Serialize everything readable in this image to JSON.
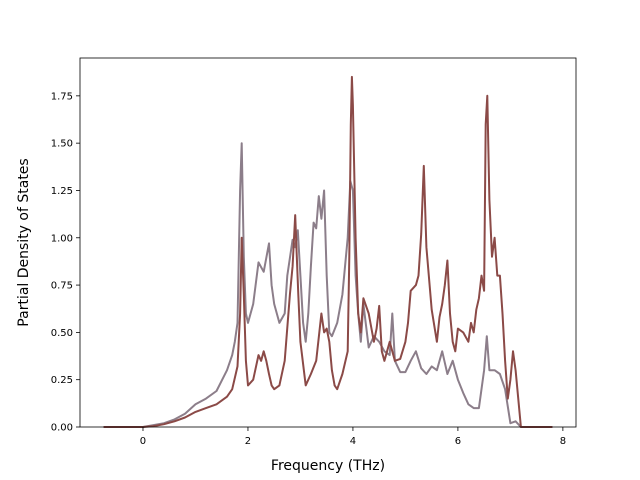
{
  "chart_data": {
    "type": "line",
    "title": "",
    "xlabel": "Frequency (THz)",
    "ylabel": "Partial Density of States",
    "xlim": [
      -1.2,
      8.25
    ],
    "ylim": [
      0,
      1.95
    ],
    "xticks": [
      0,
      2,
      4,
      6,
      8
    ],
    "yticks": [
      0.0,
      0.25,
      0.5,
      0.75,
      1.0,
      1.25,
      1.5,
      1.75
    ],
    "xtick_labels": [
      "0",
      "2",
      "4",
      "6",
      "8"
    ],
    "ytick_labels": [
      "0.00",
      "0.25",
      "0.50",
      "0.75",
      "1.00",
      "1.25",
      "1.50",
      "1.75"
    ],
    "grid": false,
    "legend": "none",
    "series": [
      {
        "color": "#8c7e8a",
        "x": [
          -0.75,
          0.0,
          0.2,
          0.4,
          0.6,
          0.8,
          1.0,
          1.2,
          1.4,
          1.6,
          1.7,
          1.75,
          1.8,
          1.85,
          1.88,
          1.92,
          1.96,
          2.0,
          2.1,
          2.2,
          2.3,
          2.4,
          2.45,
          2.5,
          2.6,
          2.7,
          2.75,
          2.85,
          2.9,
          2.95,
          3.0,
          3.05,
          3.1,
          3.15,
          3.2,
          3.25,
          3.3,
          3.35,
          3.4,
          3.45,
          3.5,
          3.55,
          3.6,
          3.7,
          3.8,
          3.9,
          3.95,
          4.0,
          4.05,
          4.1,
          4.15,
          4.2,
          4.3,
          4.4,
          4.5,
          4.6,
          4.7,
          4.75,
          4.8,
          4.9,
          5.0,
          5.1,
          5.2,
          5.3,
          5.4,
          5.5,
          5.6,
          5.7,
          5.8,
          5.9,
          6.0,
          6.1,
          6.2,
          6.3,
          6.4,
          6.5,
          6.55,
          6.6,
          6.7,
          6.8,
          6.9,
          7.0,
          7.1,
          7.2,
          7.8
        ],
        "y": [
          0.0,
          0.0,
          0.01,
          0.02,
          0.04,
          0.07,
          0.12,
          0.15,
          0.19,
          0.3,
          0.38,
          0.45,
          0.55,
          1.25,
          1.5,
          0.9,
          0.6,
          0.55,
          0.65,
          0.87,
          0.82,
          0.97,
          0.75,
          0.65,
          0.55,
          0.6,
          0.8,
          0.99,
          0.95,
          1.04,
          0.8,
          0.55,
          0.45,
          0.6,
          0.85,
          1.08,
          1.05,
          1.22,
          1.1,
          1.25,
          0.8,
          0.5,
          0.48,
          0.55,
          0.7,
          1.0,
          1.3,
          1.25,
          0.8,
          0.6,
          0.45,
          0.65,
          0.42,
          0.48,
          0.45,
          0.4,
          0.38,
          0.6,
          0.35,
          0.29,
          0.29,
          0.35,
          0.4,
          0.31,
          0.28,
          0.32,
          0.3,
          0.4,
          0.28,
          0.35,
          0.25,
          0.18,
          0.12,
          0.1,
          0.1,
          0.3,
          0.48,
          0.3,
          0.3,
          0.28,
          0.2,
          0.02,
          0.03,
          0.0,
          0.0
        ]
      },
      {
        "color": "#8b4a47",
        "x": [
          -0.75,
          0.0,
          0.2,
          0.4,
          0.6,
          0.8,
          1.0,
          1.2,
          1.4,
          1.6,
          1.7,
          1.8,
          1.85,
          1.88,
          1.92,
          1.96,
          2.0,
          2.1,
          2.2,
          2.25,
          2.3,
          2.35,
          2.4,
          2.45,
          2.5,
          2.6,
          2.7,
          2.8,
          2.85,
          2.9,
          2.93,
          2.96,
          3.0,
          3.1,
          3.2,
          3.3,
          3.4,
          3.45,
          3.5,
          3.55,
          3.6,
          3.65,
          3.7,
          3.8,
          3.9,
          3.93,
          3.96,
          3.98,
          4.0,
          4.05,
          4.1,
          4.15,
          4.2,
          4.3,
          4.4,
          4.45,
          4.5,
          4.55,
          4.6,
          4.7,
          4.8,
          4.9,
          5.0,
          5.05,
          5.1,
          5.2,
          5.25,
          5.3,
          5.35,
          5.4,
          5.5,
          5.6,
          5.65,
          5.7,
          5.75,
          5.8,
          5.85,
          5.9,
          5.95,
          6.0,
          6.1,
          6.2,
          6.25,
          6.3,
          6.35,
          6.4,
          6.45,
          6.5,
          6.53,
          6.56,
          6.6,
          6.65,
          6.7,
          6.75,
          6.8,
          6.85,
          6.9,
          6.95,
          7.0,
          7.05,
          7.1,
          7.2,
          7.8
        ],
        "y": [
          0.0,
          0.0,
          0.005,
          0.015,
          0.03,
          0.05,
          0.08,
          0.1,
          0.12,
          0.16,
          0.2,
          0.32,
          0.6,
          1.0,
          0.7,
          0.35,
          0.22,
          0.25,
          0.38,
          0.35,
          0.4,
          0.35,
          0.28,
          0.22,
          0.2,
          0.22,
          0.35,
          0.7,
          0.85,
          1.12,
          0.9,
          0.7,
          0.45,
          0.22,
          0.28,
          0.35,
          0.6,
          0.5,
          0.52,
          0.45,
          0.3,
          0.22,
          0.2,
          0.28,
          0.4,
          0.9,
          1.6,
          1.85,
          1.7,
          1.0,
          0.6,
          0.5,
          0.68,
          0.6,
          0.45,
          0.52,
          0.64,
          0.4,
          0.35,
          0.45,
          0.35,
          0.36,
          0.45,
          0.55,
          0.72,
          0.75,
          0.8,
          1.02,
          1.38,
          0.95,
          0.62,
          0.45,
          0.58,
          0.65,
          0.75,
          0.88,
          0.6,
          0.45,
          0.4,
          0.52,
          0.5,
          0.45,
          0.55,
          0.5,
          0.62,
          0.68,
          0.8,
          0.72,
          1.6,
          1.75,
          1.2,
          0.9,
          1.0,
          0.8,
          0.8,
          0.6,
          0.35,
          0.15,
          0.25,
          0.4,
          0.3,
          0.0,
          0.0
        ]
      }
    ]
  }
}
